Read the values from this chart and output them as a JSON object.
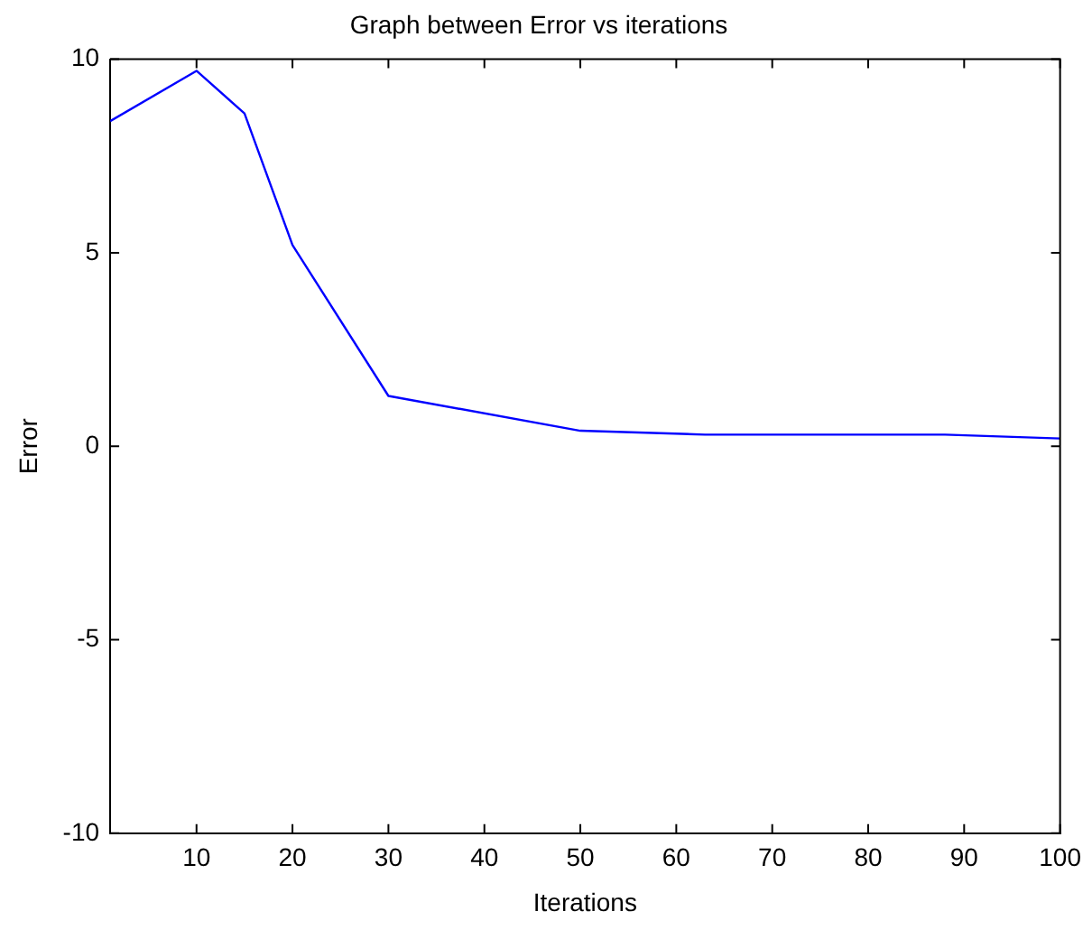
{
  "chart_data": {
    "type": "line",
    "title": "Graph between Error vs iterations",
    "xlabel": "Iterations",
    "ylabel": "Error",
    "x": [
      1,
      10,
      15,
      20,
      30,
      50,
      63,
      88,
      100
    ],
    "series": [
      {
        "color": "#0000ff",
        "values": [
          8.4,
          9.7,
          8.6,
          5.2,
          1.3,
          0.4,
          0.3,
          0.3,
          0.2
        ]
      }
    ],
    "xlim": [
      1,
      100
    ],
    "xticks": [
      10,
      20,
      30,
      40,
      50,
      60,
      70,
      80,
      90,
      100
    ],
    "ylim": [
      -10,
      10
    ],
    "yticks": [
      -10,
      -5,
      0,
      5,
      10
    ],
    "grid": false,
    "legend": false,
    "marker": "none",
    "line_style": "solid"
  }
}
